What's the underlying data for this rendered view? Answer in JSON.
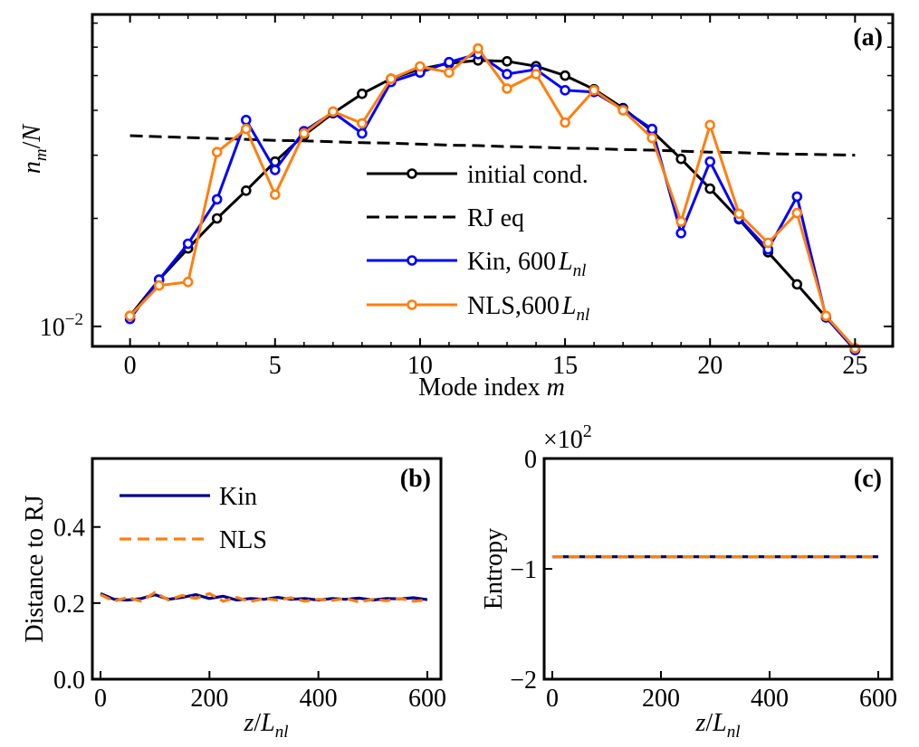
{
  "colors": {
    "initial": "#000000",
    "rj": "#000000",
    "kin": "#0000ff",
    "nls": "#ff7f0e",
    "kin_b": "#00008b"
  },
  "chart_data": [
    {
      "id": "a",
      "type": "line",
      "panel_label": "(a)",
      "xlabel_main": "Mode index ",
      "xlabel_var": "m",
      "ylabel": "n_m/N",
      "yscale": "log",
      "xlim": [
        -1.3,
        26.3
      ],
      "ylim": [
        0.0088,
        0.074
      ],
      "xticks": [
        0,
        5,
        10,
        15,
        20,
        25
      ],
      "ytick_label": "10^{-2}",
      "x": [
        0,
        1,
        2,
        3,
        4,
        5,
        6,
        7,
        8,
        9,
        10,
        11,
        12,
        13,
        14,
        15,
        16,
        17,
        18,
        19,
        20,
        21,
        22,
        23,
        24,
        25
      ],
      "series": [
        {
          "name": "initial cond.",
          "legend_text": "initial cond.",
          "color_key": "initial",
          "dash": "solid",
          "markers": true,
          "values": [
            0.0107,
            0.0135,
            0.0165,
            0.02,
            0.0239,
            0.0288,
            0.0341,
            0.0393,
            0.0445,
            0.049,
            0.0521,
            0.0541,
            0.0551,
            0.0548,
            0.0531,
            0.05,
            0.0458,
            0.0406,
            0.035,
            0.0293,
            0.0242,
            0.0199,
            0.0161,
            0.0131,
            0.0106,
            0.0086
          ]
        },
        {
          "name": "RJ eq",
          "legend_text": "RJ eq",
          "color_key": "rj",
          "dash": "dashed",
          "markers": false,
          "values": [
            0.034,
            0.0338,
            0.0336,
            0.0334,
            0.0332,
            0.033,
            0.0329,
            0.0327,
            0.0325,
            0.0324,
            0.0322,
            0.032,
            0.0319,
            0.0317,
            0.0316,
            0.0314,
            0.0313,
            0.0311,
            0.031,
            0.0308,
            0.0306,
            0.0305,
            0.0303,
            0.0302,
            0.0301,
            0.03
          ]
        },
        {
          "name": "Kin, 600 L_nl",
          "legend_text": "Kin, 600",
          "legend_var": "L",
          "legend_sub": "nl",
          "color_key": "kin",
          "dash": "solid",
          "markers": true,
          "values": [
            0.0105,
            0.0135,
            0.017,
            0.0226,
            0.0376,
            0.0273,
            0.035,
            0.0395,
            0.0345,
            0.048,
            0.051,
            0.0545,
            0.0574,
            0.0505,
            0.052,
            0.0455,
            0.045,
            0.0402,
            0.0355,
            0.0182,
            0.0288,
            0.02,
            0.0164,
            0.023,
            0.0106,
            0.0086
          ]
        },
        {
          "name": "NLS,600 L_nl",
          "legend_text": "NLS,600",
          "legend_var": "L",
          "legend_sub": "nl",
          "color_key": "nls",
          "dash": "solid",
          "markers": true,
          "values": [
            0.0107,
            0.013,
            0.0133,
            0.0306,
            0.0355,
            0.0233,
            0.0345,
            0.0397,
            0.0368,
            0.049,
            0.053,
            0.051,
            0.0595,
            0.046,
            0.0505,
            0.037,
            0.0455,
            0.04,
            0.0335,
            0.0196,
            0.0364,
            0.0206,
            0.0171,
            0.0207,
            0.0107,
            0.0087
          ]
        }
      ]
    },
    {
      "id": "b",
      "type": "line",
      "panel_label": "(b)",
      "ylabel": "Distance to RJ",
      "xlabel_var": "z",
      "xlabel_sep": "/",
      "xlabel_var2": "L",
      "xlabel_sub": "nl",
      "xlim": [
        -15,
        625
      ],
      "ylim": [
        0,
        0.58
      ],
      "xticks": [
        0,
        200,
        400,
        600
      ],
      "yticks": [
        0.0,
        0.2,
        0.4
      ],
      "ytick_labels": [
        "0.0",
        "0.2",
        "0.4"
      ],
      "x": [
        0,
        25,
        50,
        75,
        100,
        125,
        150,
        175,
        200,
        225,
        250,
        275,
        300,
        325,
        350,
        375,
        400,
        425,
        450,
        475,
        500,
        525,
        550,
        575,
        600
      ],
      "series": [
        {
          "name": "Kin",
          "color_key": "kin_b",
          "dash": "solid",
          "values": [
            0.225,
            0.21,
            0.208,
            0.212,
            0.222,
            0.21,
            0.215,
            0.222,
            0.212,
            0.218,
            0.208,
            0.212,
            0.21,
            0.215,
            0.21,
            0.212,
            0.208,
            0.212,
            0.21,
            0.213,
            0.208,
            0.212,
            0.211,
            0.214,
            0.209
          ]
        },
        {
          "name": "NLS",
          "color_key": "nls",
          "dash": "dashed",
          "values": [
            0.222,
            0.205,
            0.215,
            0.205,
            0.228,
            0.208,
            0.22,
            0.212,
            0.225,
            0.205,
            0.215,
            0.204,
            0.212,
            0.208,
            0.214,
            0.205,
            0.21,
            0.207,
            0.212,
            0.203,
            0.21,
            0.206,
            0.212,
            0.205,
            0.208
          ]
        }
      ]
    },
    {
      "id": "c",
      "type": "line",
      "panel_label": "(c)",
      "ylabel": "Entropy",
      "xlabel_var": "z",
      "xlabel_sep": "/",
      "xlabel_var2": "L",
      "xlabel_sub": "nl",
      "multiplier_base": "×10",
      "multiplier_exp": "2",
      "xlim": [
        -15,
        625
      ],
      "ylim": [
        -2,
        0
      ],
      "xticks": [
        0,
        200,
        400,
        600
      ],
      "yticks": [
        -2,
        -1,
        0
      ],
      "ytick_labels": [
        "−2",
        "−1",
        "0"
      ],
      "x": [
        0,
        600
      ],
      "series": [
        {
          "name": "Kin",
          "color_key": "kin_b",
          "dash": "solid",
          "values": [
            -0.89,
            -0.89
          ]
        },
        {
          "name": "NLS",
          "color_key": "nls",
          "dash": "dashed",
          "values": [
            -0.89,
            -0.89
          ]
        }
      ]
    }
  ]
}
